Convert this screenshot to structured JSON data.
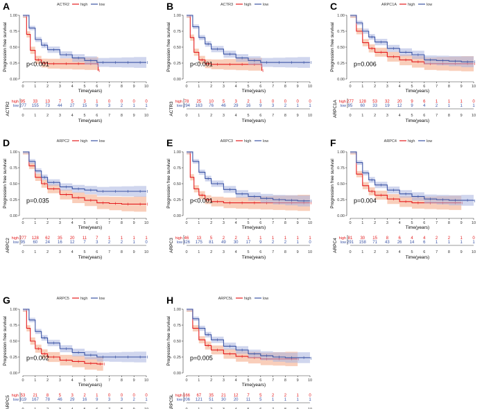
{
  "figure": {
    "x_label": "Time(years)",
    "y_label": "Progression free survival",
    "x_ticks": [
      "0",
      "1",
      "2",
      "3",
      "4",
      "5",
      "6",
      "7",
      "8",
      "9",
      "10"
    ],
    "y_ticks": [
      "0.00",
      "0.25",
      "0.50",
      "0.75",
      "1.00"
    ],
    "risk_x_ticks": [
      "0",
      "1",
      "2",
      "3",
      "4",
      "5",
      "6",
      "7",
      "8",
      "9",
      "10"
    ],
    "legend_high": "high",
    "legend_low": "low",
    "risk_high_label": "high",
    "risk_low_label": "low",
    "colors": {
      "high": "#e41a1c",
      "low": "#3a53a4",
      "high_band": "#f4a582",
      "low_band": "#a9b4e0"
    }
  },
  "chart_data": [
    {
      "type": "line",
      "panel_letter": "A",
      "gene": "ACTR2",
      "pvalue": "p<0.001",
      "xlim": [
        0,
        10
      ],
      "ylim": [
        0,
        1
      ],
      "series": [
        {
          "name": "high",
          "x": [
            0,
            0.3,
            0.6,
            1,
            1.5,
            2,
            3,
            4,
            5,
            6,
            6.1
          ],
          "y": [
            1,
            0.7,
            0.45,
            0.3,
            0.25,
            0.24,
            0.24,
            0.24,
            0.24,
            0.24,
            0.13
          ]
        },
        {
          "name": "low",
          "x": [
            0,
            0.5,
            1,
            1.5,
            2,
            3,
            4,
            5,
            6,
            7,
            8,
            9,
            10
          ],
          "y": [
            1,
            0.8,
            0.62,
            0.53,
            0.46,
            0.38,
            0.33,
            0.29,
            0.26,
            0.26,
            0.26,
            0.26,
            0.26
          ]
        }
      ],
      "risk_table": {
        "high": [
          "95",
          "33",
          "13",
          "7",
          "5",
          "3",
          "1",
          "0",
          "0",
          "0",
          "0"
        ],
        "low": [
          "277",
          "155",
          "73",
          "44",
          "27",
          "15",
          "9",
          "3",
          "2",
          "1",
          "1"
        ]
      }
    },
    {
      "type": "line",
      "panel_letter": "B",
      "gene": "ACTR3",
      "pvalue": "p<0.001",
      "xlim": [
        0,
        10
      ],
      "ylim": [
        0,
        1
      ],
      "series": [
        {
          "name": "high",
          "x": [
            0,
            0.3,
            0.6,
            1,
            1.5,
            2,
            3,
            4,
            5,
            6,
            6.1
          ],
          "y": [
            1,
            0.65,
            0.42,
            0.3,
            0.24,
            0.23,
            0.23,
            0.23,
            0.23,
            0.23,
            0.13
          ]
        },
        {
          "name": "low",
          "x": [
            0,
            0.5,
            1,
            1.5,
            2,
            3,
            4,
            5,
            6,
            7,
            8,
            9,
            10
          ],
          "y": [
            1,
            0.82,
            0.65,
            0.55,
            0.47,
            0.39,
            0.33,
            0.29,
            0.26,
            0.26,
            0.26,
            0.26,
            0.26
          ]
        }
      ],
      "risk_table": {
        "high": [
          "78",
          "25",
          "10",
          "5",
          "3",
          "2",
          "1",
          "0",
          "0",
          "0",
          "0"
        ],
        "low": [
          "294",
          "163",
          "76",
          "46",
          "29",
          "16",
          "9",
          "3",
          "2",
          "1",
          "1"
        ]
      }
    },
    {
      "type": "line",
      "panel_letter": "C",
      "gene": "ARPC1A",
      "pvalue": "p=0.006",
      "xlim": [
        0,
        10
      ],
      "ylim": [
        0,
        1
      ],
      "series": [
        {
          "name": "high",
          "x": [
            0,
            0.5,
            1,
            1.5,
            2,
            3,
            4,
            5,
            6,
            7,
            8,
            9,
            10
          ],
          "y": [
            1,
            0.75,
            0.57,
            0.48,
            0.42,
            0.35,
            0.3,
            0.27,
            0.24,
            0.24,
            0.24,
            0.24,
            0.24
          ]
        },
        {
          "name": "low",
          "x": [
            0,
            0.5,
            1,
            1.5,
            2,
            3,
            4,
            5,
            6,
            7,
            8,
            9,
            10
          ],
          "y": [
            1,
            0.88,
            0.75,
            0.66,
            0.58,
            0.48,
            0.42,
            0.38,
            0.3,
            0.29,
            0.28,
            0.27,
            0.27
          ]
        }
      ],
      "risk_table": {
        "high": [
          "277",
          "128",
          "53",
          "32",
          "20",
          "9",
          "6",
          "1",
          "1",
          "1",
          "0"
        ],
        "low": [
          "95",
          "60",
          "33",
          "19",
          "12",
          "9",
          "4",
          "2",
          "1",
          "1",
          "1"
        ]
      }
    },
    {
      "type": "line",
      "panel_letter": "D",
      "gene": "ARPC2",
      "pvalue": "p=0.035",
      "xlim": [
        0,
        10
      ],
      "ylim": [
        0,
        1
      ],
      "series": [
        {
          "name": "high",
          "x": [
            0,
            0.5,
            1,
            1.5,
            2,
            3,
            4,
            5,
            6,
            7,
            8,
            9,
            10
          ],
          "y": [
            1,
            0.78,
            0.6,
            0.5,
            0.42,
            0.33,
            0.28,
            0.24,
            0.2,
            0.19,
            0.18,
            0.18,
            0.18
          ]
        },
        {
          "name": "low",
          "x": [
            0,
            0.5,
            1,
            1.5,
            2,
            3,
            4,
            5,
            6,
            7,
            8,
            9,
            10
          ],
          "y": [
            1,
            0.85,
            0.7,
            0.6,
            0.52,
            0.45,
            0.42,
            0.4,
            0.38,
            0.38,
            0.38,
            0.38,
            0.38
          ]
        }
      ],
      "risk_table": {
        "high": [
          "277",
          "128",
          "62",
          "35",
          "20",
          "11",
          "7",
          "1",
          "1",
          "1",
          "1"
        ],
        "low": [
          "95",
          "60",
          "24",
          "16",
          "12",
          "7",
          "3",
          "2",
          "2",
          "1",
          "0"
        ]
      }
    },
    {
      "type": "line",
      "panel_letter": "E",
      "gene": "ARPC3",
      "pvalue": "p<0.001",
      "xlim": [
        0,
        10
      ],
      "ylim": [
        0,
        1
      ],
      "series": [
        {
          "name": "high",
          "x": [
            0,
            0.3,
            0.6,
            1,
            1.5,
            2,
            3,
            4,
            5,
            6,
            7,
            8,
            9,
            10
          ],
          "y": [
            1,
            0.6,
            0.42,
            0.32,
            0.25,
            0.22,
            0.2,
            0.2,
            0.2,
            0.2,
            0.2,
            0.2,
            0.2,
            0.2
          ]
        },
        {
          "name": "low",
          "x": [
            0,
            0.5,
            1,
            1.5,
            2,
            3,
            4,
            5,
            6,
            7,
            8,
            9,
            10
          ],
          "y": [
            1,
            0.85,
            0.68,
            0.58,
            0.5,
            0.41,
            0.34,
            0.3,
            0.27,
            0.25,
            0.24,
            0.23,
            0.23
          ]
        }
      ],
      "risk_table": {
        "high": [
          "46",
          "13",
          "5",
          "2",
          "2",
          "1",
          "1",
          "1",
          "1",
          "1",
          "1"
        ],
        "low": [
          "326",
          "175",
          "81",
          "49",
          "30",
          "17",
          "9",
          "2",
          "2",
          "1",
          "0"
        ]
      }
    },
    {
      "type": "line",
      "panel_letter": "F",
      "gene": "ARPC4",
      "pvalue": "p=0.004",
      "xlim": [
        0,
        10
      ],
      "ylim": [
        0,
        1
      ],
      "series": [
        {
          "name": "high",
          "x": [
            0,
            0.5,
            1,
            1.5,
            2,
            3,
            4,
            5,
            6,
            7,
            8,
            9
          ],
          "y": [
            1,
            0.65,
            0.47,
            0.38,
            0.32,
            0.26,
            0.22,
            0.2,
            0.2,
            0.2,
            0.2,
            0.2
          ]
        },
        {
          "name": "low",
          "x": [
            0,
            0.5,
            1,
            1.5,
            2,
            3,
            4,
            5,
            6,
            7,
            8,
            9,
            10
          ],
          "y": [
            1,
            0.83,
            0.67,
            0.56,
            0.48,
            0.4,
            0.34,
            0.3,
            0.26,
            0.25,
            0.24,
            0.24,
            0.23
          ]
        }
      ],
      "risk_table": {
        "high": [
          "81",
          "30",
          "15",
          "8",
          "6",
          "4",
          "4",
          "2",
          "2",
          "1",
          "0"
        ],
        "low": [
          "291",
          "158",
          "71",
          "43",
          "26",
          "14",
          "6",
          "1",
          "1",
          "1",
          "1"
        ]
      }
    },
    {
      "type": "line",
      "panel_letter": "G",
      "gene": "ARPC5",
      "pvalue": "p=0.002",
      "xlim": [
        0,
        10
      ],
      "ylim": [
        0,
        1
      ],
      "series": [
        {
          "name": "high",
          "x": [
            0,
            0.3,
            0.6,
            1,
            1.5,
            2,
            3,
            4,
            5,
            6,
            6.5
          ],
          "y": [
            1,
            0.7,
            0.5,
            0.38,
            0.3,
            0.25,
            0.2,
            0.18,
            0.15,
            0.14,
            0.14
          ]
        },
        {
          "name": "low",
          "x": [
            0,
            0.5,
            1,
            1.5,
            2,
            3,
            4,
            5,
            6,
            7,
            8,
            9,
            10
          ],
          "y": [
            1,
            0.83,
            0.65,
            0.55,
            0.47,
            0.38,
            0.32,
            0.28,
            0.25,
            0.25,
            0.25,
            0.25,
            0.25
          ]
        }
      ],
      "risk_table": {
        "high": [
          "53",
          "21",
          "8",
          "5",
          "3",
          "2",
          "1",
          "0",
          "0",
          "0",
          "0"
        ],
        "low": [
          "319",
          "167",
          "78",
          "46",
          "29",
          "16",
          "9",
          "3",
          "3",
          "2",
          "1"
        ]
      }
    },
    {
      "type": "line",
      "panel_letter": "H",
      "gene": "ARPC5L",
      "pvalue": "p=0.005",
      "xlim": [
        0,
        10
      ],
      "ylim": [
        0,
        1
      ],
      "series": [
        {
          "name": "high",
          "x": [
            0,
            0.5,
            1,
            1.5,
            2,
            3,
            4,
            5,
            6,
            7,
            8,
            9
          ],
          "y": [
            1,
            0.7,
            0.52,
            0.43,
            0.36,
            0.3,
            0.26,
            0.24,
            0.22,
            0.22,
            0.22,
            0.22
          ]
        },
        {
          "name": "low",
          "x": [
            0,
            0.5,
            1,
            1.5,
            2,
            3,
            4,
            5,
            6,
            7,
            8,
            9,
            10
          ],
          "y": [
            1,
            0.85,
            0.7,
            0.6,
            0.52,
            0.42,
            0.36,
            0.3,
            0.27,
            0.25,
            0.24,
            0.24,
            0.23
          ]
        }
      ],
      "risk_table": {
        "high": [
          "166",
          "67",
          "35",
          "21",
          "12",
          "7",
          "5",
          "2",
          "2",
          "1",
          "0"
        ],
        "low": [
          "206",
          "121",
          "51",
          "30",
          "20",
          "11",
          "5",
          "1",
          "1",
          "1",
          "1"
        ]
      }
    }
  ]
}
